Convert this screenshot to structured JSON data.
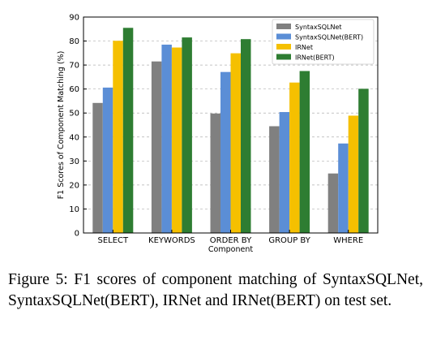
{
  "chart_data": {
    "type": "bar",
    "title": "",
    "xlabel": "Component",
    "ylabel": "F1 Scores of Component Matching (%)",
    "ylim": [
      0,
      90
    ],
    "yticks": [
      0,
      10,
      20,
      30,
      40,
      50,
      60,
      70,
      80,
      90
    ],
    "grid": "horizontal dashed",
    "legend_position": "top-right",
    "categories": [
      "SELECT",
      "KEYWORDS",
      "ORDER BY",
      "GROUP BY",
      "WHERE"
    ],
    "series": [
      {
        "name": "SyntaxSQLNet",
        "color": "#808080",
        "values": [
          54.2,
          71.5,
          49.8,
          44.5,
          24.8
        ]
      },
      {
        "name": "SyntaxSQLNet(BERT)",
        "color": "#5b8ed6",
        "values": [
          60.6,
          78.5,
          67.1,
          50.4,
          37.3
        ]
      },
      {
        "name": "IRNet",
        "color": "#f5c000",
        "values": [
          80.1,
          77.3,
          74.9,
          62.7,
          48.9
        ]
      },
      {
        "name": "IRNet(BERT)",
        "color": "#2e7d32",
        "values": [
          85.5,
          81.5,
          80.8,
          67.5,
          60.1
        ]
      }
    ]
  },
  "caption": "Figure 5:  F1 scores of component matching of SyntaxSQLNet, SyntaxSQLNet(BERT), IRNet and IRNet(BERT) on test set."
}
